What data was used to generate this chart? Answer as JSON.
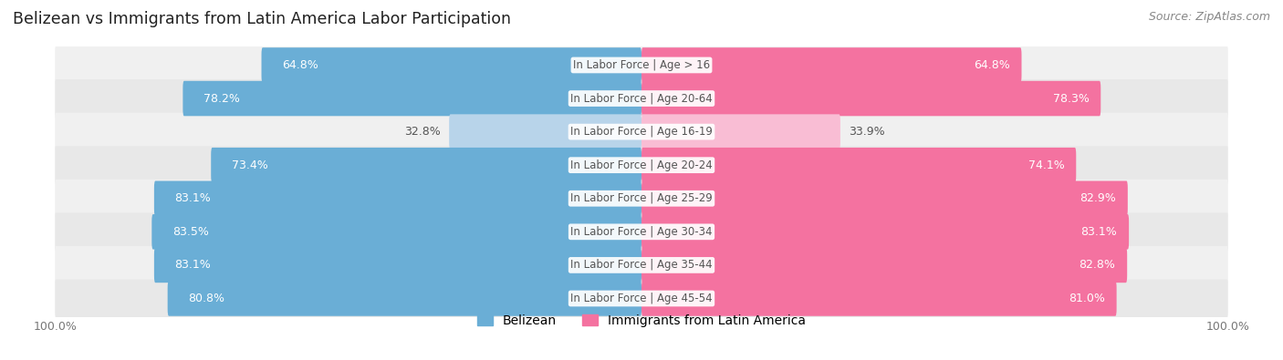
{
  "title": "Belizean vs Immigrants from Latin America Labor Participation",
  "source": "Source: ZipAtlas.com",
  "categories": [
    "In Labor Force | Age > 16",
    "In Labor Force | Age 20-64",
    "In Labor Force | Age 16-19",
    "In Labor Force | Age 20-24",
    "In Labor Force | Age 25-29",
    "In Labor Force | Age 30-34",
    "In Labor Force | Age 35-44",
    "In Labor Force | Age 45-54"
  ],
  "belizean_values": [
    64.8,
    78.2,
    32.8,
    73.4,
    83.1,
    83.5,
    83.1,
    80.8
  ],
  "immigrant_values": [
    64.8,
    78.3,
    33.9,
    74.1,
    82.9,
    83.1,
    82.8,
    81.0
  ],
  "belizean_color": "#6aaed6",
  "belizean_color_light": "#b8d4ea",
  "immigrant_color": "#f472a0",
  "immigrant_color_light": "#f9bdd4",
  "row_bg_color_odd": "#f0f0f0",
  "row_bg_color_even": "#e8e8e8",
  "max_value": 100.0,
  "bar_height": 0.62,
  "label_fontsize": 9.0,
  "title_fontsize": 12.5,
  "source_fontsize": 9,
  "legend_fontsize": 10,
  "axis_label_fontsize": 9,
  "bg_color": "#ffffff",
  "center_label_color": "#555555",
  "value_text_color_dark": "#555555",
  "value_text_color_light": "#ffffff"
}
